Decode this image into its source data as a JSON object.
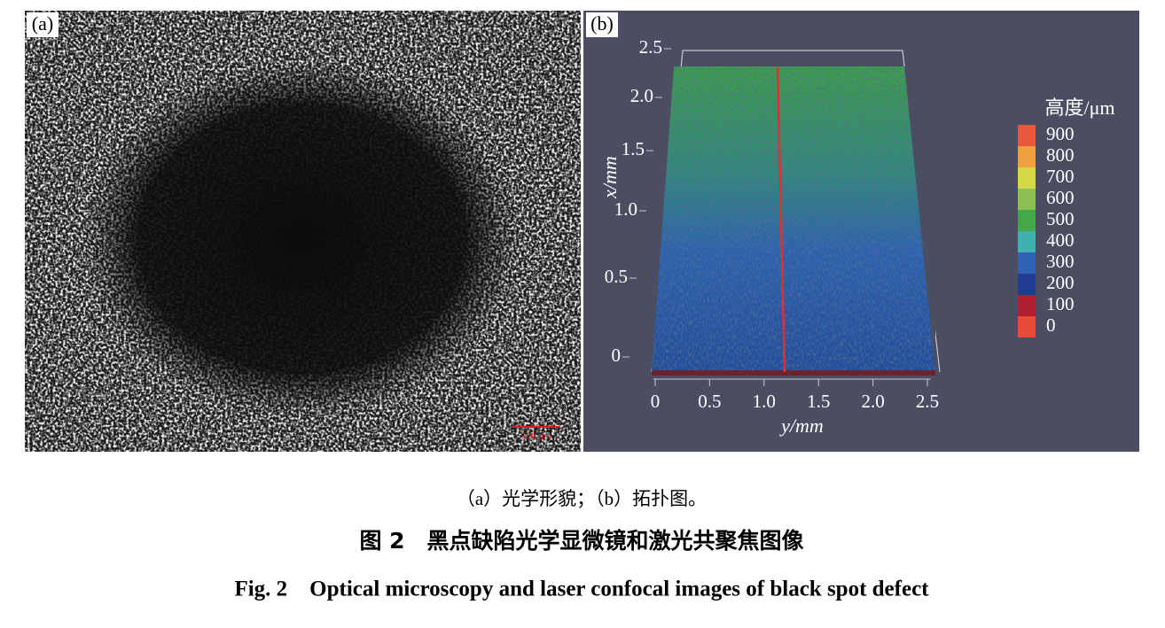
{
  "panel_a": {
    "label": "(a)",
    "scale_bar": "200 μm"
  },
  "panel_b": {
    "label": "(b)",
    "vertical_axis_label": "x/mm",
    "horizontal_axis_label": "y/mm",
    "vertical_ticks": [
      "2.5",
      "2.0",
      "1.5",
      "1.0",
      "0.5",
      "0"
    ],
    "horizontal_ticks": [
      "0",
      "0.5",
      "1.0",
      "1.5",
      "2.0",
      "2.5"
    ],
    "legend": {
      "title": "高度/μm",
      "items": [
        {
          "label": "900",
          "color": "#e8583c"
        },
        {
          "label": "800",
          "color": "#eea03e"
        },
        {
          "label": "700",
          "color": "#d6d848"
        },
        {
          "label": "600",
          "color": "#8cc052"
        },
        {
          "label": "500",
          "color": "#42a84a"
        },
        {
          "label": "400",
          "color": "#3fb2b0"
        },
        {
          "label": "300",
          "color": "#2f62b2"
        },
        {
          "label": "200",
          "color": "#213a92"
        },
        {
          "label": "100",
          "color": "#b01f30"
        },
        {
          "label": "0",
          "color": "#e84a3a"
        }
      ]
    }
  },
  "captions": {
    "sub": "（a）光学形貌；（b）拓扑图。",
    "title_cn": "图 2　黑点缺陷光学显微镜和激光共聚焦图像",
    "title_en": "Fig. 2　Optical microscopy and laser confocal images of black spot defect"
  }
}
